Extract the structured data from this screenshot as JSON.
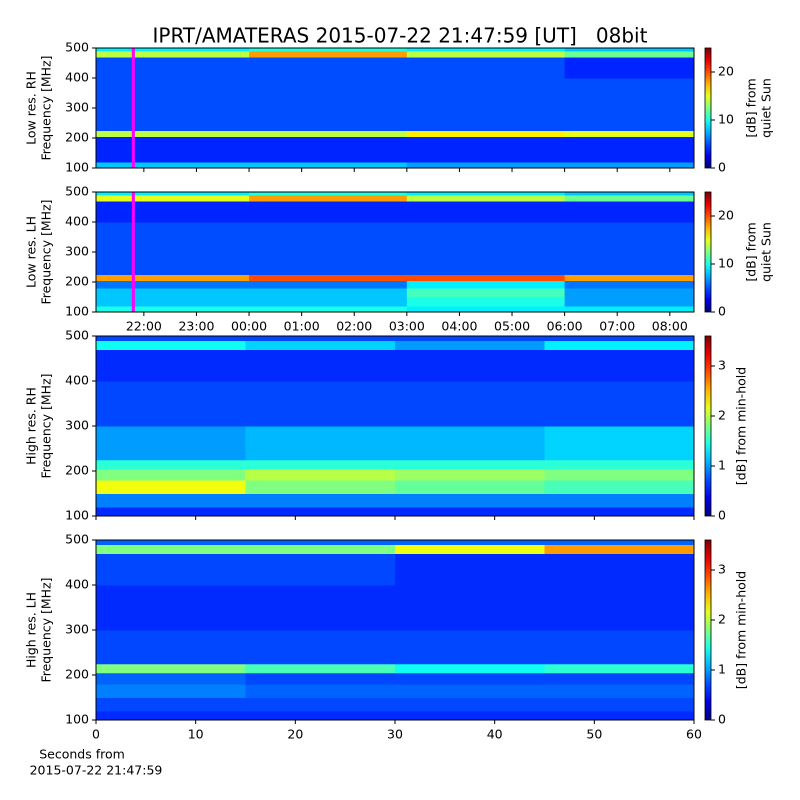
{
  "chart_data": [
    {
      "type": "heatmap",
      "title": "IPRT/AMATERAS 2015-07-22 21:47:59 [UT]   08bit",
      "ylabel": [
        "Low res. RH",
        "Frequency [MHz]"
      ],
      "xlim": [
        21.09,
        32.46
      ],
      "ylim": [
        100,
        500
      ],
      "yticks": [
        100,
        200,
        300,
        400,
        500
      ],
      "x_edges": [
        21.09,
        24,
        27,
        30,
        32.46
      ],
      "y_edges": [
        100,
        120,
        150,
        180,
        205,
        225,
        300,
        400,
        470,
        490,
        500
      ],
      "z": [
        [
          8,
          8,
          7,
          7
        ],
        [
          4,
          4,
          4,
          4
        ],
        [
          4,
          4,
          4,
          4
        ],
        [
          4,
          4,
          4,
          4
        ],
        [
          14,
          14,
          16,
          15
        ],
        [
          5,
          5,
          5,
          5
        ],
        [
          5,
          5,
          5,
          5
        ],
        [
          5,
          5,
          5,
          4
        ],
        [
          14,
          18,
          14,
          12
        ],
        [
          9,
          10,
          9,
          8
        ]
      ],
      "zlim": [
        0,
        25
      ],
      "zticks": [
        0,
        10,
        20
      ],
      "colorbar_label": [
        "[dB] from",
        "quiet Sun"
      ],
      "marker_x": 21.8,
      "marker_color": "#ff00ff"
    },
    {
      "type": "heatmap",
      "ylabel": [
        "Low res. LH",
        "Frequency [MHz]"
      ],
      "xlim": [
        21.09,
        32.46
      ],
      "ylim": [
        100,
        500
      ],
      "yticks": [
        100,
        200,
        300,
        400,
        500
      ],
      "xticks": [
        {
          "value": 22,
          "label": "22:00"
        },
        {
          "value": 23,
          "label": "23:00"
        },
        {
          "value": 24,
          "label": "00:00"
        },
        {
          "value": 25,
          "label": "01:00"
        },
        {
          "value": 26,
          "label": "02:00"
        },
        {
          "value": 27,
          "label": "03:00"
        },
        {
          "value": 28,
          "label": "04:00"
        },
        {
          "value": 29,
          "label": "05:00"
        },
        {
          "value": 30,
          "label": "06:00"
        },
        {
          "value": 31,
          "label": "07:00"
        },
        {
          "value": 32,
          "label": "08:00"
        }
      ],
      "x_edges": [
        21.09,
        24,
        27,
        30,
        32.46
      ],
      "y_edges": [
        100,
        120,
        150,
        180,
        205,
        225,
        300,
        400,
        470,
        490,
        500
      ],
      "z": [
        [
          10,
          10,
          9,
          9
        ],
        [
          8,
          8,
          10,
          7
        ],
        [
          8,
          8,
          11,
          7
        ],
        [
          6,
          6,
          9,
          6
        ],
        [
          18,
          20,
          20,
          18
        ],
        [
          5,
          5,
          5,
          5
        ],
        [
          5,
          5,
          5,
          5
        ],
        [
          4,
          4,
          4,
          4
        ],
        [
          15,
          18,
          14,
          12
        ],
        [
          9,
          10,
          9,
          8
        ]
      ],
      "zlim": [
        0,
        25
      ],
      "zticks": [
        0,
        10,
        20
      ],
      "colorbar_label": [
        "[dB] from",
        "quiet Sun"
      ],
      "marker_x": 21.8,
      "marker_color": "#ff00ff"
    },
    {
      "type": "heatmap",
      "ylabel": [
        "High res. RH",
        "Frequency [MHz]"
      ],
      "xlim": [
        0,
        60
      ],
      "ylim": [
        100,
        500
      ],
      "yticks": [
        100,
        200,
        300,
        400,
        500
      ],
      "x_edges": [
        0,
        15,
        30,
        45,
        60
      ],
      "y_edges": [
        100,
        120,
        150,
        180,
        205,
        225,
        300,
        400,
        470,
        490,
        500
      ],
      "z": [
        [
          0.6,
          0.6,
          0.6,
          0.6
        ],
        [
          0.9,
          0.9,
          0.9,
          0.9
        ],
        [
          2.2,
          1.8,
          1.7,
          1.6
        ],
        [
          1.8,
          2.0,
          1.9,
          1.8
        ],
        [
          1.5,
          1.5,
          1.5,
          1.5
        ],
        [
          1.0,
          1.1,
          1.1,
          1.2
        ],
        [
          0.7,
          0.7,
          0.7,
          0.7
        ],
        [
          0.6,
          0.6,
          0.6,
          0.6
        ],
        [
          1.4,
          1.2,
          1.0,
          1.3
        ],
        [
          0.7,
          0.7,
          0.7,
          0.7
        ]
      ],
      "zlim": [
        0,
        3.6
      ],
      "zticks": [
        0,
        1,
        2,
        3
      ],
      "colorbar_label": [
        "[dB] from min-hold"
      ]
    },
    {
      "type": "heatmap",
      "ylabel": [
        "High res. LH",
        "Frequency [MHz]"
      ],
      "xlabel": [
        "Seconds from",
        "2015-07-22 21:47:59"
      ],
      "xlim": [
        0,
        60
      ],
      "ylim": [
        100,
        500
      ],
      "yticks": [
        100,
        200,
        300,
        400,
        500
      ],
      "xticks": [
        0,
        10,
        20,
        30,
        40,
        50,
        60
      ],
      "x_edges": [
        0,
        15,
        30,
        45,
        60
      ],
      "y_edges": [
        100,
        120,
        150,
        180,
        205,
        225,
        300,
        400,
        470,
        490,
        500
      ],
      "z": [
        [
          0.6,
          0.6,
          0.6,
          0.6
        ],
        [
          0.7,
          0.7,
          0.7,
          0.7
        ],
        [
          0.9,
          0.8,
          0.8,
          0.8
        ],
        [
          0.8,
          0.7,
          0.7,
          0.7
        ],
        [
          1.8,
          1.6,
          1.4,
          1.5
        ],
        [
          0.7,
          0.7,
          0.7,
          0.7
        ],
        [
          0.6,
          0.6,
          0.6,
          0.6
        ],
        [
          0.7,
          0.7,
          0.6,
          0.6
        ],
        [
          1.8,
          1.8,
          2.2,
          2.6
        ],
        [
          0.8,
          0.8,
          0.8,
          0.8
        ]
      ],
      "zlim": [
        0,
        3.6
      ],
      "zticks": [
        0,
        1,
        2,
        3
      ],
      "colorbar_label": [
        "[dB] from min-hold"
      ]
    }
  ]
}
